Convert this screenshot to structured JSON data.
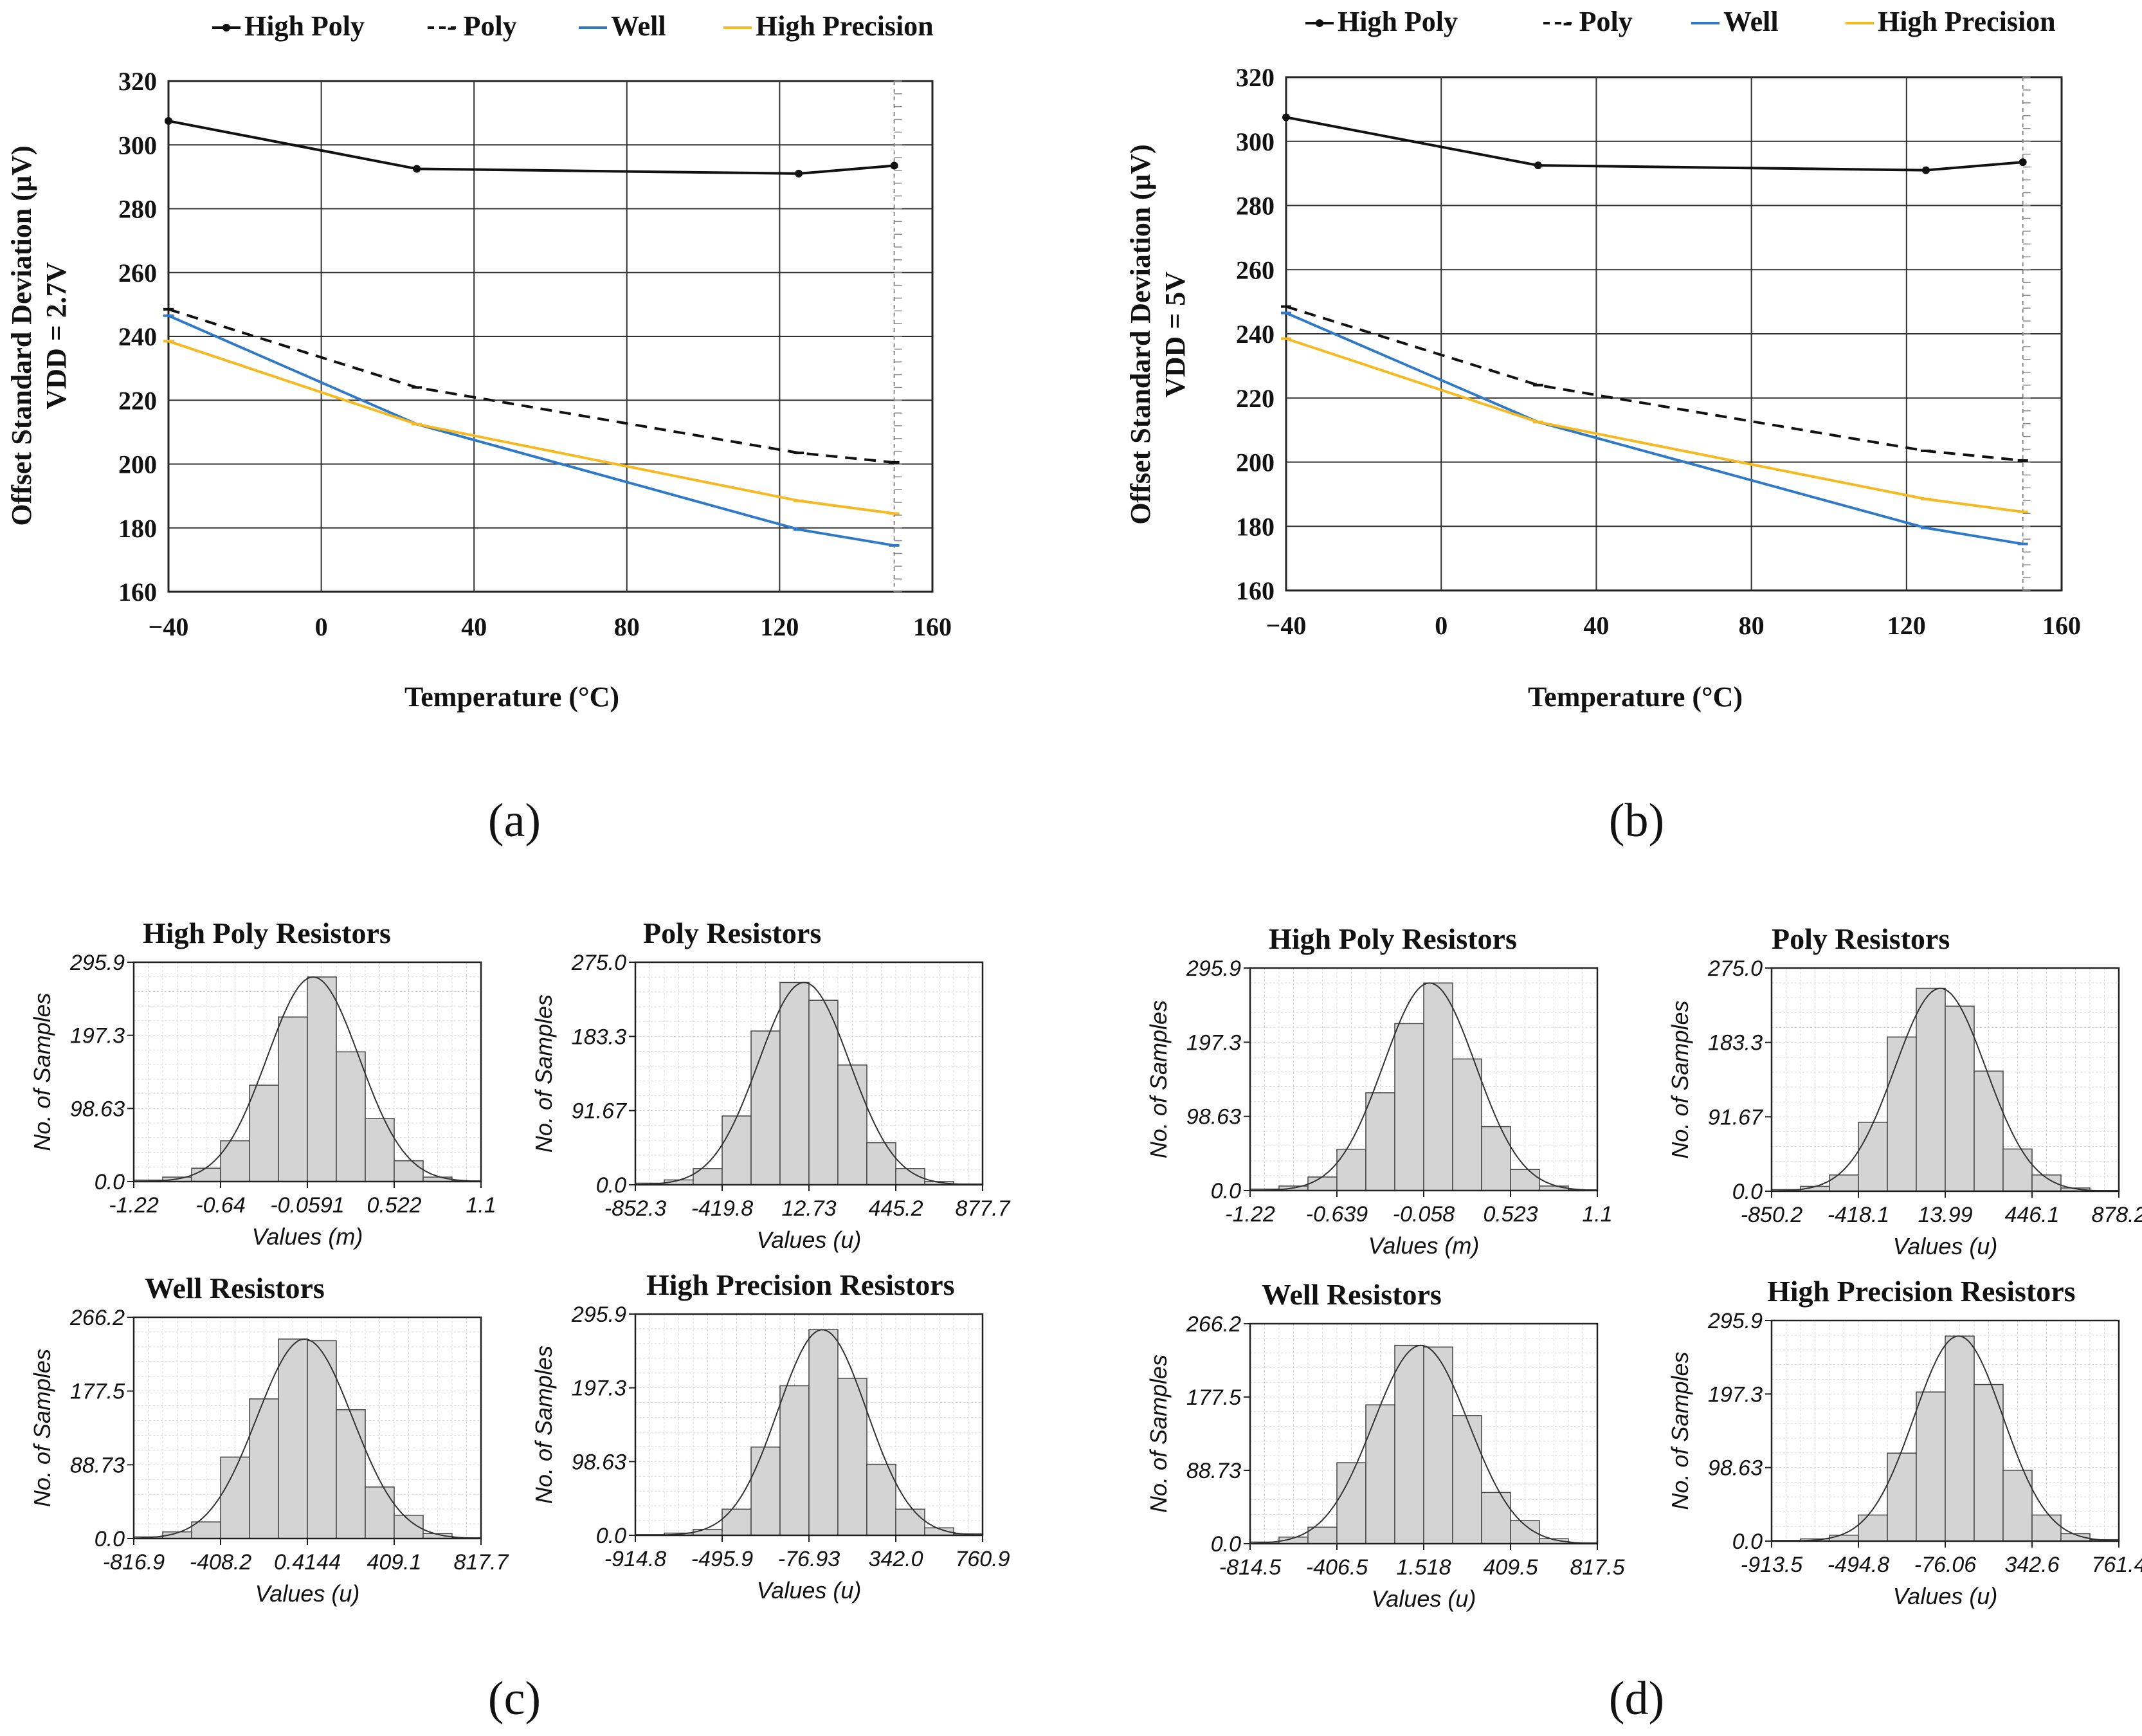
{
  "colors": {
    "high_poly": "#111111",
    "poly": "#111111",
    "well": "#2f79c7",
    "high_precision": "#f5b921",
    "bar_fill": "#d4d4d4",
    "bar_stroke": "#444444",
    "grid": "#d8d8d8"
  },
  "panel_labels": [
    "(a)",
    "(b)",
    "(c)",
    "(d)"
  ],
  "chart_data": [
    {
      "id": "a",
      "type": "line",
      "xlabel": "Temperature (°C)",
      "ylabel": [
        "Offset Standard Deviation (µV)",
        "VDD = 2.7V"
      ],
      "xlim": [
        -40,
        160
      ],
      "ylim": [
        160,
        320
      ],
      "xticks": [
        "−40",
        "0",
        "40",
        "80",
        "120",
        "160"
      ],
      "yticks": [
        "160",
        "180",
        "200",
        "220",
        "240",
        "260",
        "280",
        "300",
        "320"
      ],
      "legend": [
        "High Poly",
        "- Poly",
        "Well",
        "High Precision"
      ],
      "series": [
        {
          "name": "High Poly",
          "x": [
            -40,
            25,
            125,
            150
          ],
          "values": [
            307.5,
            292.5,
            291,
            293.5
          ]
        },
        {
          "name": "Poly",
          "x": [
            -40,
            25,
            125,
            150
          ],
          "values": [
            248.5,
            224,
            203.5,
            200.5
          ]
        },
        {
          "name": "Well",
          "x": [
            -40,
            25,
            125,
            150
          ],
          "values": [
            246.5,
            212.5,
            179.5,
            174.5
          ]
        },
        {
          "name": "High Precision",
          "x": [
            -40,
            25,
            125,
            150
          ],
          "values": [
            238.5,
            212.5,
            188.5,
            184.5
          ]
        }
      ]
    },
    {
      "id": "b",
      "type": "line",
      "xlabel": "Temperature (°C)",
      "ylabel": [
        "Offset Standard Deviation (µV)",
        "VDD = 5V"
      ],
      "xlim": [
        -40,
        160
      ],
      "ylim": [
        160,
        320
      ],
      "xticks": [
        "−40",
        "0",
        "40",
        "80",
        "120",
        "160"
      ],
      "yticks": [
        "160",
        "180",
        "200",
        "220",
        "240",
        "260",
        "280",
        "300",
        "320"
      ],
      "legend": [
        "High Poly",
        "- Poly",
        "Well",
        "High Precision"
      ],
      "series": [
        {
          "name": "High Poly",
          "x": [
            -40,
            25,
            125,
            150
          ],
          "values": [
            307.5,
            292.5,
            291,
            293.5
          ]
        },
        {
          "name": "Poly",
          "x": [
            -40,
            25,
            125,
            150
          ],
          "values": [
            248.5,
            224,
            203.5,
            200.5
          ]
        },
        {
          "name": "Well",
          "x": [
            -40,
            25,
            125,
            150
          ],
          "values": [
            246.5,
            212.5,
            179.5,
            174.5
          ]
        },
        {
          "name": "High Precision",
          "x": [
            -40,
            25,
            125,
            150
          ],
          "values": [
            238.5,
            212.5,
            188.5,
            184.5
          ]
        }
      ]
    },
    {
      "id": "c1",
      "type": "bar",
      "title": "High Poly Resistors",
      "xlabel": "Values (m)",
      "ylabel": "No. of Samples",
      "xticks": [
        "-1.22",
        "-0.64",
        "-0.0591",
        "0.522",
        "1.1"
      ],
      "yticks": [
        "0.0",
        "98.63",
        "197.3",
        "295.9"
      ],
      "ylim": [
        0,
        295.9
      ],
      "values": [
        2,
        6,
        18,
        55,
        130,
        222,
        276,
        175,
        85,
        28,
        6,
        1
      ]
    },
    {
      "id": "c2",
      "type": "bar",
      "title": "Poly Resistors",
      "xlabel": "Values (u)",
      "ylabel": "No. of Samples",
      "xticks": [
        "-852.3",
        "-419.8",
        "12.73",
        "445.2",
        "877.7"
      ],
      "yticks": [
        "0.0",
        "91.67",
        "183.3",
        "275.0"
      ],
      "ylim": [
        0,
        275
      ],
      "values": [
        2,
        6,
        20,
        85,
        190,
        250,
        228,
        148,
        52,
        20,
        4,
        1
      ]
    },
    {
      "id": "c3",
      "type": "bar",
      "title": "Well Resistors",
      "xlabel": "Values (u)",
      "ylabel": "No. of Samples",
      "xticks": [
        "-816.9",
        "-408.2",
        "0.4144",
        "409.1",
        "817.7"
      ],
      "yticks": [
        "0.0",
        "88.73",
        "177.5",
        "266.2"
      ],
      "ylim": [
        0,
        266.2
      ],
      "values": [
        2,
        8,
        20,
        98,
        168,
        240,
        238,
        155,
        62,
        28,
        6,
        1
      ]
    },
    {
      "id": "c4",
      "type": "bar",
      "title": "High Precision Resistors",
      "xlabel": "Values (u)",
      "ylabel": "No. of Samples",
      "xticks": [
        "-914.8",
        "-495.9",
        "-76.93",
        "342.0",
        "760.9"
      ],
      "yticks": [
        "0.0",
        "98.63",
        "197.3",
        "295.9"
      ],
      "ylim": [
        0,
        295.9
      ],
      "values": [
        1,
        3,
        8,
        35,
        118,
        200,
        275,
        210,
        95,
        35,
        10,
        2
      ]
    },
    {
      "id": "d1",
      "type": "bar",
      "title": "High Poly Resistors",
      "xlabel": "Values (m)",
      "ylabel": "No. of Samples",
      "xticks": [
        "-1.22",
        "-0.639",
        "-0.058",
        "0.523",
        "1.1"
      ],
      "yticks": [
        "0.0",
        "98.63",
        "197.3",
        "295.9"
      ],
      "ylim": [
        0,
        295.9
      ],
      "values": [
        2,
        6,
        18,
        55,
        130,
        222,
        276,
        175,
        85,
        28,
        6,
        1
      ]
    },
    {
      "id": "d2",
      "type": "bar",
      "title": "Poly Resistors",
      "xlabel": "Values (u)",
      "ylabel": "No. of Samples",
      "xticks": [
        "-850.2",
        "-418.1",
        "13.99",
        "446.1",
        "878.2"
      ],
      "yticks": [
        "0.0",
        "91.67",
        "183.3",
        "275.0"
      ],
      "ylim": [
        0,
        275
      ],
      "values": [
        2,
        6,
        20,
        85,
        190,
        250,
        228,
        148,
        52,
        20,
        4,
        1
      ]
    },
    {
      "id": "d3",
      "type": "bar",
      "title": "Well Resistors",
      "xlabel": "Values (u)",
      "ylabel": "No. of Samples",
      "xticks": [
        "-814.5",
        "-406.5",
        "1.518",
        "409.5",
        "817.5"
      ],
      "yticks": [
        "0.0",
        "88.73",
        "177.5",
        "266.2"
      ],
      "ylim": [
        0,
        266.2
      ],
      "values": [
        2,
        8,
        20,
        98,
        168,
        240,
        238,
        155,
        62,
        28,
        6,
        1
      ]
    },
    {
      "id": "d4",
      "type": "bar",
      "title": "High Precision Resistors",
      "xlabel": "Values (u)",
      "ylabel": "No. of Samples",
      "xticks": [
        "-913.5",
        "-494.8",
        "-76.06",
        "342.6",
        "761.4"
      ],
      "yticks": [
        "0.0",
        "98.63",
        "197.3",
        "295.9"
      ],
      "ylim": [
        0,
        295.9
      ],
      "values": [
        1,
        3,
        8,
        35,
        118,
        200,
        275,
        210,
        95,
        35,
        10,
        2
      ]
    }
  ]
}
